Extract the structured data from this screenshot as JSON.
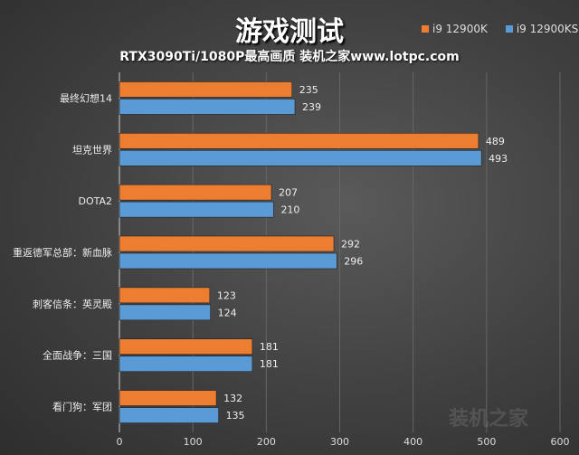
{
  "chart_data": {
    "type": "bar",
    "orientation": "horizontal",
    "title": "游戏测试",
    "subtitle": "RTX3090Ti/1080P最高画质 装机之家www.lotpc.com",
    "categories": [
      "最终幻想14",
      "坦克世界",
      "DOTA2",
      "重返德军总部：新血脉",
      "刺客信条：英灵殿",
      "全面战争：三国",
      "看门狗：军团"
    ],
    "series": [
      {
        "name": "i9 12900K",
        "color": "#ed7d31",
        "values": [
          235,
          489,
          207,
          292,
          123,
          181,
          132
        ]
      },
      {
        "name": "i9 12900KS",
        "color": "#5b9bd5",
        "values": [
          239,
          493,
          210,
          296,
          124,
          181,
          135
        ]
      }
    ],
    "xlim": [
      0,
      600
    ],
    "xticks": [
      "0",
      "100",
      "200",
      "300",
      "400",
      "500",
      "600"
    ],
    "grid": true,
    "legend": "top-right",
    "watermark": "装机之家 www.lotpc.com"
  }
}
